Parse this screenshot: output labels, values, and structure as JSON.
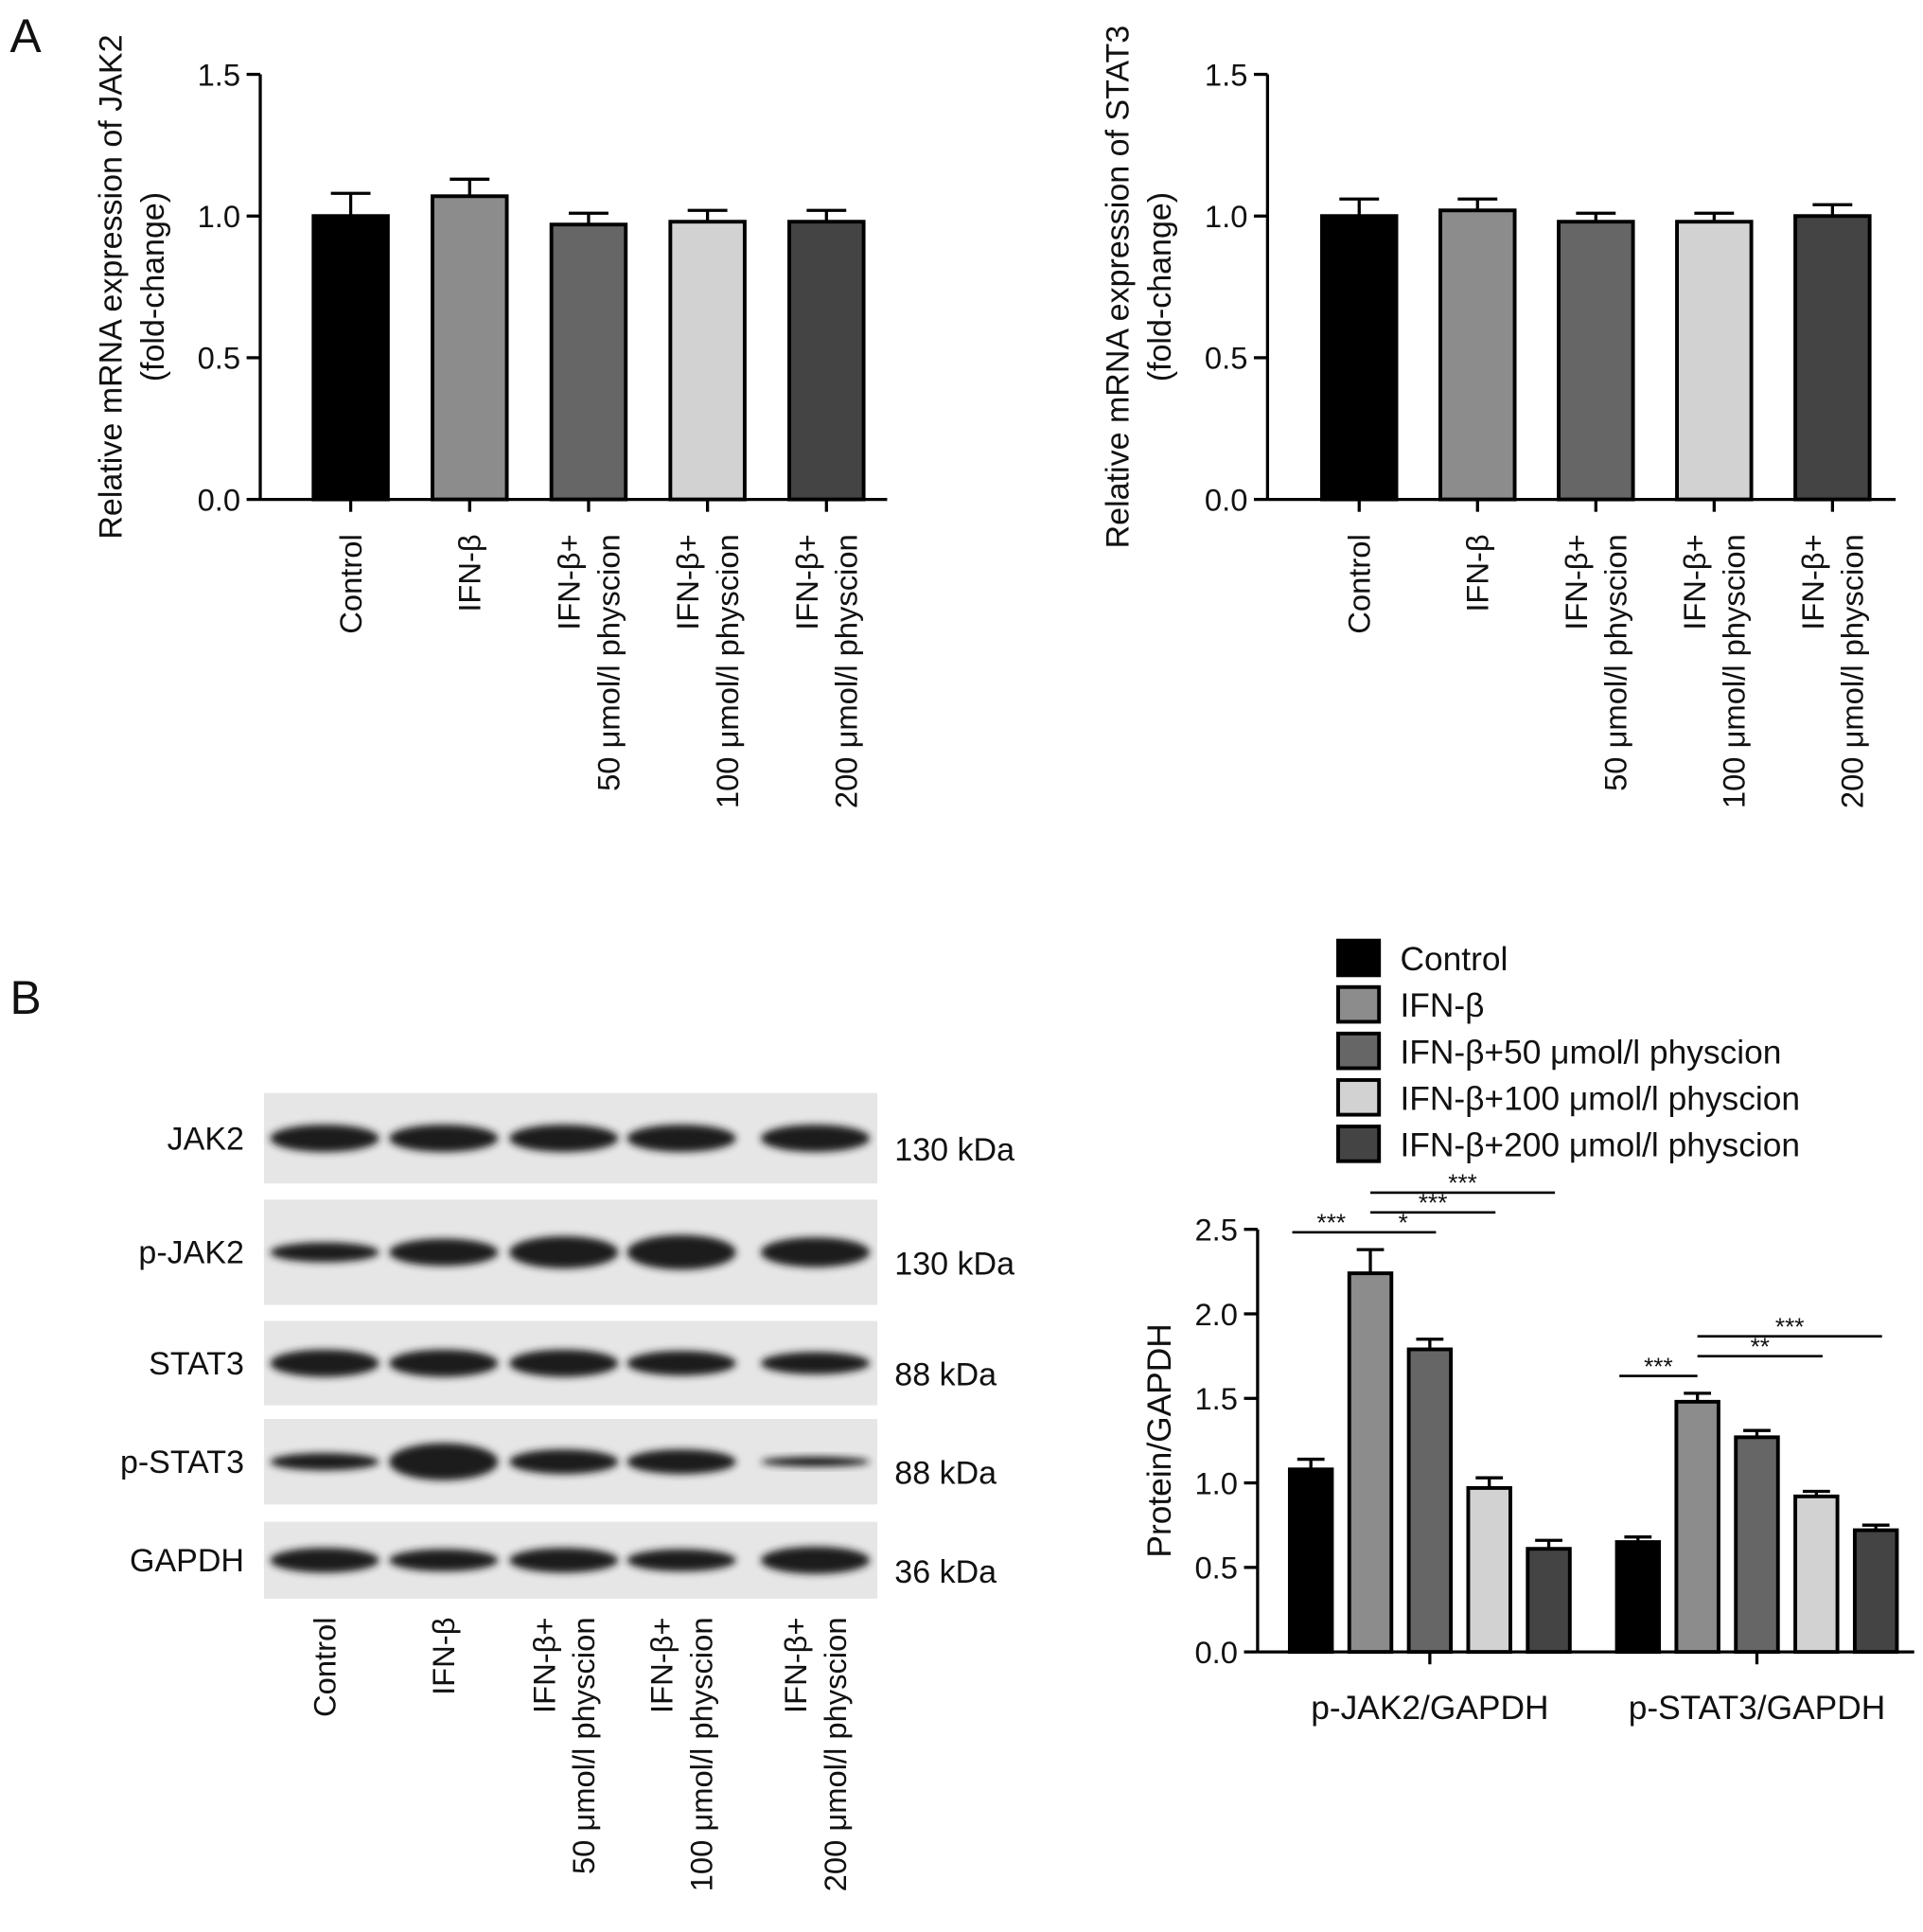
{
  "panel_labels": [
    "A",
    "B"
  ],
  "chart_data": [
    {
      "type": "bar",
      "ylabel": [
        "Relative mRNA expression of JAK2",
        "(fold-change)"
      ],
      "categories": [
        [
          "Control"
        ],
        [
          "IFN-β"
        ],
        [
          "IFN-β+",
          "50 μmol/l physcion"
        ],
        [
          "IFN-β+",
          "100 μmol/l physcion"
        ],
        [
          "IFN-β+",
          "200 μmol/l physcion"
        ]
      ],
      "values": [
        1.0,
        1.07,
        0.97,
        0.98,
        0.98
      ],
      "errors": [
        0.08,
        0.06,
        0.04,
        0.04,
        0.04
      ],
      "colors": [
        "#000000",
        "#8c8c8c",
        "#666666",
        "#d2d2d2",
        "#444444"
      ],
      "ylim": [
        0,
        1.5
      ],
      "yticks": [
        {
          "value": 0,
          "label": "0.0"
        },
        0.5,
        {
          "value": 1,
          "label": "1.0"
        },
        1.5
      ]
    },
    {
      "type": "bar",
      "ylabel": [
        "Relative mRNA expression of STAT3",
        "(fold-change)"
      ],
      "categories": [
        [
          "Control"
        ],
        [
          "IFN-β"
        ],
        [
          "IFN-β+",
          "50 μmol/l physcion"
        ],
        [
          "IFN-β+",
          "100 μmol/l physcion"
        ],
        [
          "IFN-β+",
          "200 μmol/l physcion"
        ]
      ],
      "values": [
        1.0,
        1.02,
        0.98,
        0.98,
        1.0
      ],
      "errors": [
        0.06,
        0.04,
        0.03,
        0.03,
        0.04
      ],
      "colors": [
        "#000000",
        "#8c8c8c",
        "#666666",
        "#d2d2d2",
        "#444444"
      ],
      "ylim": [
        0,
        1.5
      ],
      "yticks": [
        {
          "value": 0,
          "label": "0.0"
        },
        0.5,
        {
          "value": 1,
          "label": "1.0"
        },
        1.5
      ]
    },
    {
      "type": "grouped_bar",
      "ylabel": "Protein/GAPDH",
      "categories": [
        "p-JAK2/GAPDH",
        "p-STAT3/GAPDH"
      ],
      "series": [
        {
          "name": "Control",
          "color": "#000000",
          "values": [
            1.08,
            0.65
          ],
          "errors": [
            0.06,
            0.03
          ]
        },
        {
          "name": "IFN-β",
          "color": "#8c8c8c",
          "values": [
            2.24,
            1.48
          ],
          "errors": [
            0.14,
            0.05
          ]
        },
        {
          "name": "IFN-β+50 μmol/l physcion",
          "color": "#666666",
          "values": [
            1.79,
            1.27
          ],
          "errors": [
            0.06,
            0.04
          ]
        },
        {
          "name": "IFN-β+100 μmol/l physcion",
          "color": "#d2d2d2",
          "values": [
            0.97,
            0.92
          ],
          "errors": [
            0.06,
            0.03
          ]
        },
        {
          "name": "IFN-β+200 μmol/l physcion",
          "color": "#444444",
          "values": [
            0.61,
            0.72
          ],
          "errors": [
            0.05,
            0.03
          ]
        }
      ],
      "ylim": [
        0,
        2.5
      ],
      "yticks": [
        {
          "value": 0,
          "label": "0.0"
        },
        0.5,
        {
          "value": 1,
          "label": "1.0"
        },
        1.5,
        {
          "value": 2,
          "label": "2.0"
        },
        2.5
      ],
      "legend": "top",
      "annotations": [
        {
          "text": "***",
          "category": 0,
          "pair": [
            0,
            1
          ]
        },
        {
          "text": "*",
          "category": 0,
          "pair": [
            1,
            2
          ]
        },
        {
          "text": "***",
          "category": 0,
          "pair": [
            1,
            3
          ]
        },
        {
          "text": "***",
          "category": 0,
          "pair": [
            1,
            4
          ]
        },
        {
          "text": "***",
          "category": 1,
          "pair": [
            0,
            1
          ]
        },
        {
          "text": "**",
          "category": 1,
          "pair": [
            1,
            3
          ]
        },
        {
          "text": "***",
          "category": 1,
          "pair": [
            1,
            4
          ]
        }
      ]
    }
  ],
  "blot": {
    "rows": [
      {
        "label": "JAK2",
        "size": "130 kDa"
      },
      {
        "label": "p-JAK2",
        "size": "130 kDa"
      },
      {
        "label": "STAT3",
        "size": "88 kDa"
      },
      {
        "label": "p-STAT3",
        "size": "88 kDa"
      },
      {
        "label": "GAPDH",
        "size": "36 kDa"
      }
    ],
    "lanes": [
      [
        "Control"
      ],
      [
        "IFN-β"
      ],
      [
        "IFN-β+",
        "50 μmol/l physcion"
      ],
      [
        "IFN-β+",
        "100 μmol/l physcion"
      ],
      [
        "IFN-β+",
        "200 μmol/l physcion"
      ]
    ]
  }
}
